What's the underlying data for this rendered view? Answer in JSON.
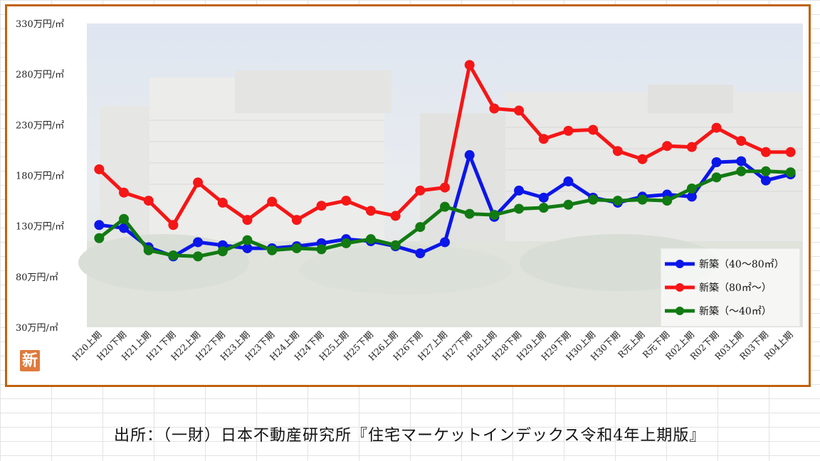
{
  "badge": {
    "text": "新"
  },
  "source": {
    "text": "出所：（一財）日本不動産研究所『住宅マーケットインデックス令和4年上期版』"
  },
  "chart_data": {
    "type": "line",
    "title": "",
    "xlabel": "",
    "ylabel": "",
    "ylim": [
      30,
      330
    ],
    "yticks": [
      30,
      80,
      130,
      180,
      230,
      280,
      330
    ],
    "ytick_labels": [
      "30万円/㎡",
      "80万円/㎡",
      "130万円/㎡",
      "180万円/㎡",
      "230万円/㎡",
      "280万円/㎡",
      "330万円/㎡"
    ],
    "grid": false,
    "legend_position": "bottom-right",
    "categories": [
      "H20上期",
      "H20下期",
      "H21上期",
      "H21下期",
      "H22上期",
      "H22下期",
      "H23上期",
      "H23下期",
      "H24上期",
      "H24下期",
      "H25上期",
      "H25下期",
      "H26上期",
      "H26下期",
      "H27上期",
      "H27下期",
      "H28上期",
      "H28下期",
      "H29上期",
      "H29下期",
      "H30上期",
      "H30下期",
      "R元上期",
      "R元下期",
      "R02上期",
      "R02下期",
      "R03上期",
      "R03下期",
      "R04上期"
    ],
    "series": [
      {
        "name": "新築（40～80㎡）",
        "color": "#0b16e8",
        "values": [
          131,
          128,
          109,
          100,
          114,
          111,
          108,
          108,
          110,
          113,
          117,
          115,
          110,
          103,
          114,
          200,
          139,
          165,
          158,
          174,
          158,
          153,
          159,
          161,
          159,
          193,
          194,
          175,
          181
        ]
      },
      {
        "name": "新築（80㎡～）",
        "color": "#f51616",
        "values": [
          186,
          163,
          155,
          131,
          173,
          153,
          136,
          154,
          136,
          150,
          155,
          145,
          140,
          165,
          168,
          289,
          246,
          244,
          216,
          224,
          225,
          204,
          196,
          209,
          208,
          227,
          214,
          203,
          203
        ]
      },
      {
        "name": "新築（～40㎡）",
        "color": "#127a12",
        "values": [
          118,
          137,
          106,
          101,
          100,
          105,
          116,
          106,
          108,
          107,
          113,
          117,
          111,
          129,
          149,
          142,
          141,
          147,
          148,
          151,
          156,
          155,
          156,
          155,
          167,
          178,
          184,
          184,
          183
        ]
      }
    ]
  }
}
